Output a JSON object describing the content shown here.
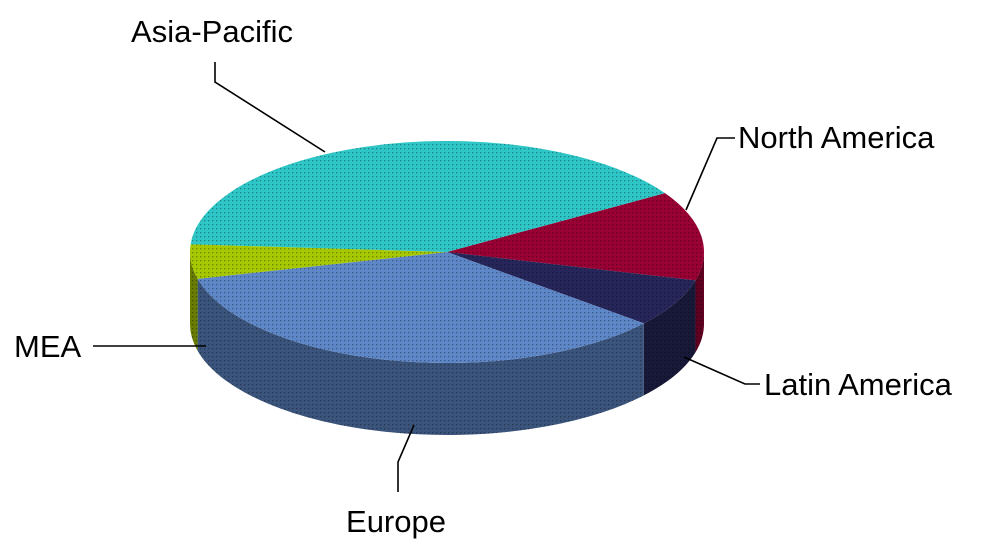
{
  "chart_data": {
    "type": "pie",
    "style": "3d",
    "slices": [
      {
        "label": "North America",
        "value": 13,
        "color": "#990033"
      },
      {
        "label": "Latin America",
        "value": 7,
        "color": "#26265a"
      },
      {
        "label": "Europe",
        "value": 35,
        "color": "#5e87c8"
      },
      {
        "label": "MEA",
        "value": 5,
        "color": "#a6c800"
      },
      {
        "label": "Asia-Pacific",
        "value": 40,
        "color": "#2ec6c6"
      }
    ],
    "unit": "%",
    "legend": "none",
    "data_labels": "category names outside with leader lines"
  }
}
